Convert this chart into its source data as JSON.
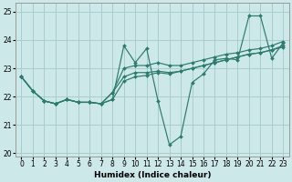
{
  "xlabel": "Humidex (Indice chaleur)",
  "xlim": [
    -0.5,
    23.5
  ],
  "ylim": [
    19.9,
    25.3
  ],
  "yticks": [
    20,
    21,
    22,
    23,
    24,
    25
  ],
  "xticks": [
    0,
    1,
    2,
    3,
    4,
    5,
    6,
    7,
    8,
    9,
    10,
    11,
    12,
    13,
    14,
    15,
    16,
    17,
    18,
    19,
    20,
    21,
    22,
    23
  ],
  "bg_color": "#cce8e8",
  "grid_color": "#aacccc",
  "line_color": "#2d7a6e",
  "series": [
    [
      22.7,
      22.2,
      21.85,
      21.75,
      21.9,
      21.8,
      21.8,
      21.75,
      21.9,
      23.8,
      23.2,
      23.7,
      21.85,
      20.3,
      20.6,
      22.5,
      22.8,
      23.3,
      23.35,
      23.3,
      24.85,
      24.85,
      23.35,
      23.9
    ],
    [
      22.7,
      22.2,
      21.85,
      21.75,
      21.9,
      21.8,
      21.8,
      21.75,
      21.9,
      22.55,
      22.7,
      22.75,
      22.85,
      22.8,
      22.9,
      23.0,
      23.1,
      23.2,
      23.3,
      23.4,
      23.5,
      23.55,
      23.65,
      23.75
    ],
    [
      22.7,
      22.2,
      21.85,
      21.75,
      21.9,
      21.8,
      21.8,
      21.75,
      22.15,
      22.7,
      22.85,
      22.85,
      22.9,
      22.85,
      22.9,
      23.0,
      23.1,
      23.2,
      23.3,
      23.4,
      23.5,
      23.55,
      23.65,
      23.8
    ],
    [
      22.7,
      22.2,
      21.85,
      21.75,
      21.9,
      21.8,
      21.8,
      21.75,
      22.15,
      23.0,
      23.1,
      23.1,
      23.2,
      23.1,
      23.1,
      23.2,
      23.3,
      23.4,
      23.5,
      23.55,
      23.65,
      23.7,
      23.8,
      23.95
    ]
  ]
}
